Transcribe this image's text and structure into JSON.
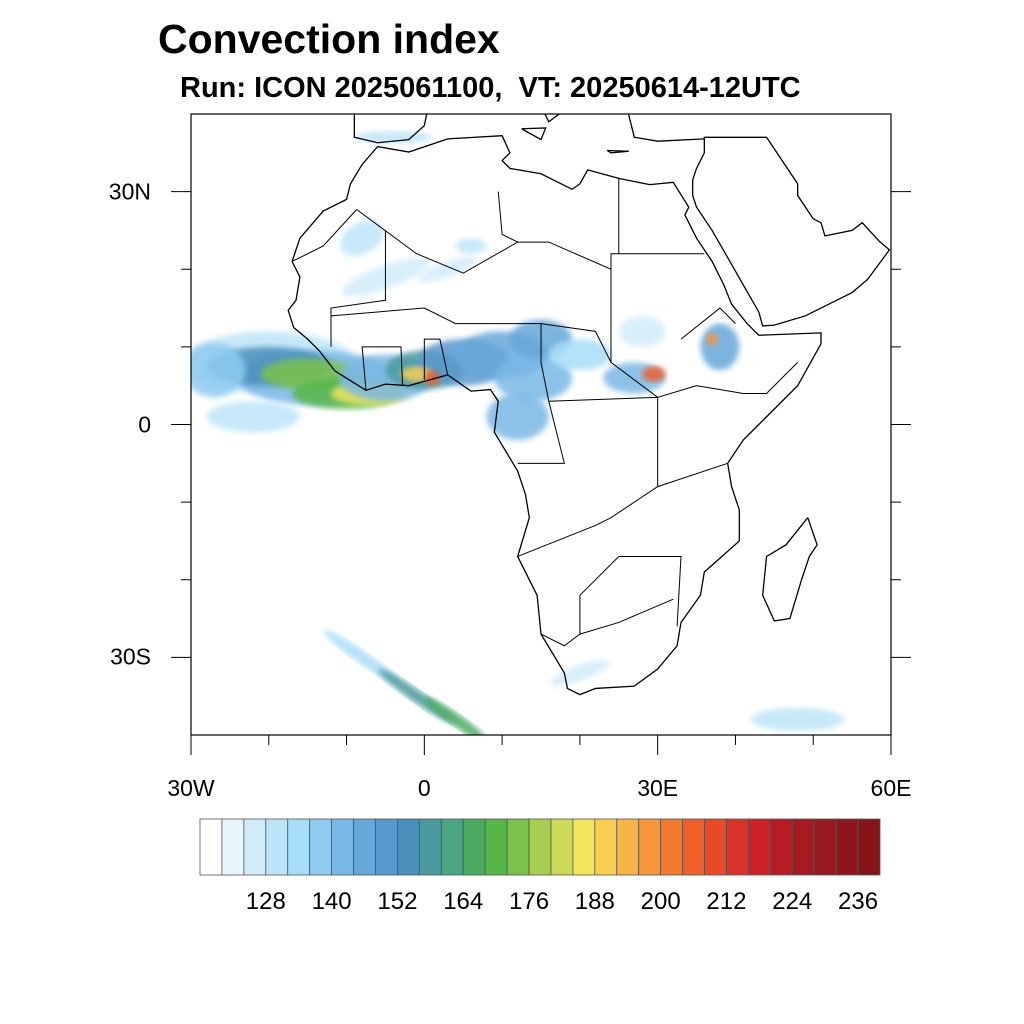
{
  "title": "Convection index",
  "subtitle": "Run: ICON 2025061100,  VT: 20250614-12UTC",
  "map": {
    "lon_range": [
      -30,
      60
    ],
    "lat_range": [
      -40,
      40
    ],
    "lat_labels": [
      {
        "lat": 30,
        "text": "30N"
      },
      {
        "lat": 0,
        "text": "0"
      },
      {
        "lat": -30,
        "text": "30S"
      }
    ],
    "lon_labels": [
      {
        "lon": -30,
        "text": "30W"
      },
      {
        "lon": 0,
        "text": "0"
      },
      {
        "lon": 30,
        "text": "30E"
      },
      {
        "lon": 60,
        "text": "60E"
      }
    ]
  },
  "colorbar": {
    "labels": [
      "128",
      "140",
      "152",
      "164",
      "176",
      "188",
      "200",
      "212",
      "224",
      "236"
    ],
    "colors": [
      "#ffffff",
      "#e8f5fc",
      "#d2ecf9",
      "#bde5f8",
      "#a8ddf7",
      "#8fcbf0",
      "#7ab8e5",
      "#66a8da",
      "#5899cf",
      "#4a90bb",
      "#4a9a9f",
      "#4aa582",
      "#4aab60",
      "#55b748",
      "#7bc24a",
      "#a6ce50",
      "#cdda56",
      "#f3e65c",
      "#f9cf52",
      "#f8b547",
      "#f7963b",
      "#f47a30",
      "#ef5f2a",
      "#e84a28",
      "#db3229",
      "#cf2129",
      "#b71c24",
      "#a31a20",
      "#98181f",
      "#8e161b",
      "#861519"
    ]
  }
}
